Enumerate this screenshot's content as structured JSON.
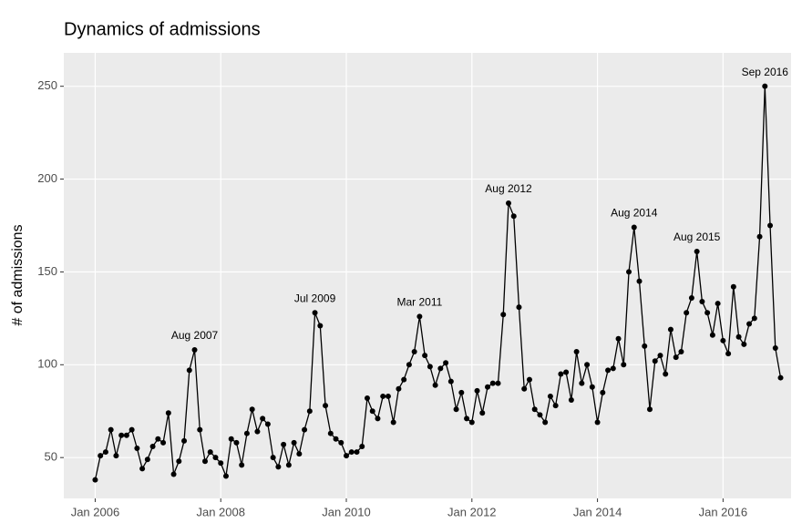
{
  "chart_data": {
    "type": "line",
    "title": "Dynamics of admissions",
    "y_label": "# of admissions",
    "x": [
      "2006-01",
      "2006-02",
      "2006-03",
      "2006-04",
      "2006-05",
      "2006-06",
      "2006-07",
      "2006-08",
      "2006-09",
      "2006-10",
      "2006-11",
      "2006-12",
      "2007-01",
      "2007-02",
      "2007-03",
      "2007-04",
      "2007-05",
      "2007-06",
      "2007-07",
      "2007-08",
      "2007-09",
      "2007-10",
      "2007-11",
      "2007-12",
      "2008-01",
      "2008-02",
      "2008-03",
      "2008-04",
      "2008-05",
      "2008-06",
      "2008-07",
      "2008-08",
      "2008-09",
      "2008-10",
      "2008-11",
      "2008-12",
      "2009-01",
      "2009-02",
      "2009-03",
      "2009-04",
      "2009-05",
      "2009-06",
      "2009-07",
      "2009-08",
      "2009-09",
      "2009-10",
      "2009-11",
      "2009-12",
      "2010-01",
      "2010-02",
      "2010-03",
      "2010-04",
      "2010-05",
      "2010-06",
      "2010-07",
      "2010-08",
      "2010-09",
      "2010-10",
      "2010-11",
      "2010-12",
      "2011-01",
      "2011-02",
      "2011-03",
      "2011-04",
      "2011-05",
      "2011-06",
      "2011-07",
      "2011-08",
      "2011-09",
      "2011-10",
      "2011-11",
      "2011-12",
      "2012-01",
      "2012-02",
      "2012-03",
      "2012-04",
      "2012-05",
      "2012-06",
      "2012-07",
      "2012-08",
      "2012-09",
      "2012-10",
      "2012-11",
      "2012-12",
      "2013-01",
      "2013-02",
      "2013-03",
      "2013-04",
      "2013-05",
      "2013-06",
      "2013-07",
      "2013-08",
      "2013-09",
      "2013-10",
      "2013-11",
      "2013-12",
      "2014-01",
      "2014-02",
      "2014-03",
      "2014-04",
      "2014-05",
      "2014-06",
      "2014-07",
      "2014-08",
      "2014-09",
      "2014-10",
      "2014-11",
      "2014-12",
      "2015-01",
      "2015-02",
      "2015-03",
      "2015-04",
      "2015-05",
      "2015-06",
      "2015-07",
      "2015-08",
      "2015-09",
      "2015-10",
      "2015-11",
      "2015-12",
      "2016-01",
      "2016-02",
      "2016-03",
      "2016-04",
      "2016-05",
      "2016-06",
      "2016-07",
      "2016-08",
      "2016-09",
      "2016-10",
      "2016-11",
      "2016-12"
    ],
    "values": [
      38,
      51,
      53,
      65,
      51,
      62,
      62,
      65,
      55,
      44,
      49,
      56,
      60,
      58,
      74,
      41,
      48,
      59,
      97,
      108,
      65,
      48,
      53,
      50,
      47,
      40,
      60,
      58,
      46,
      63,
      76,
      64,
      71,
      68,
      50,
      45,
      57,
      46,
      58,
      52,
      65,
      75,
      128,
      121,
      78,
      63,
      60,
      58,
      51,
      53,
      53,
      56,
      82,
      75,
      71,
      83,
      83,
      69,
      87,
      92,
      100,
      107,
      126,
      105,
      99,
      89,
      98,
      101,
      91,
      76,
      85,
      71,
      69,
      86,
      74,
      88,
      90,
      90,
      127,
      187,
      180,
      131,
      87,
      92,
      76,
      73,
      69,
      83,
      78,
      95,
      96,
      81,
      107,
      90,
      100,
      88,
      69,
      85,
      97,
      98,
      114,
      100,
      150,
      174,
      145,
      110,
      76,
      102,
      105,
      95,
      119,
      104,
      107,
      128,
      136,
      161,
      134,
      128,
      116,
      133,
      113,
      106,
      142,
      115,
      111,
      122,
      125,
      169,
      250,
      175,
      109,
      93
    ],
    "color": "#000000",
    "xlim": [
      "2005-07",
      "2017-02"
    ],
    "xticks": [
      {
        "value": "2006-01",
        "label": "Jan 2006"
      },
      {
        "value": "2008-01",
        "label": "Jan 2008"
      },
      {
        "value": "2010-01",
        "label": "Jan 2010"
      },
      {
        "value": "2012-01",
        "label": "Jan 2012"
      },
      {
        "value": "2014-01",
        "label": "Jan 2014"
      },
      {
        "value": "2016-01",
        "label": "Jan 2016"
      }
    ],
    "ylim": [
      28,
      268
    ],
    "yticks": [
      50,
      100,
      150,
      200,
      250
    ],
    "grid": true,
    "annotations": [
      {
        "text": "Aug 2007",
        "x": "2007-08"
      },
      {
        "text": "Jul 2009",
        "x": "2009-07"
      },
      {
        "text": "Mar 2011",
        "x": "2011-03"
      },
      {
        "text": "Aug 2012",
        "x": "2012-08"
      },
      {
        "text": "Aug 2014",
        "x": "2014-08"
      },
      {
        "text": "Aug 2015",
        "x": "2015-08"
      },
      {
        "text": "Sep 2016",
        "x": "2016-09"
      }
    ]
  }
}
